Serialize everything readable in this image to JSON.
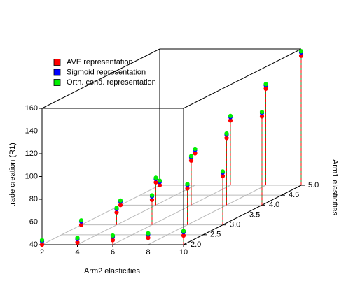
{
  "chart_data": {
    "type": "scatter3d",
    "xlabel": "Arm2 elasticities",
    "ylabel": "Arm1 elasticities",
    "zlabel": "trade creation (R1)",
    "x": [
      2,
      4,
      6,
      8,
      10,
      2,
      4,
      6,
      8,
      10,
      2,
      4,
      6,
      8,
      10,
      2,
      4,
      6,
      8,
      10
    ],
    "y": [
      2,
      2,
      2,
      2,
      2,
      3,
      3,
      3,
      3,
      3,
      4,
      4,
      4,
      4,
      4,
      5,
      5,
      5,
      5,
      5
    ],
    "series": [
      {
        "name": "AVE representation",
        "color": "#ff0000",
        "values": [
          40,
          42,
          44,
          46,
          48,
          40,
          51,
          62,
          72,
          83,
          40,
          60,
          79,
          99,
          118,
          40,
          68,
          97,
          125,
          154
        ]
      },
      {
        "name": "Sigmoid representation",
        "color": "#0000ff",
        "values": [
          43,
          45,
          47,
          49,
          51,
          43,
          54,
          65,
          75,
          86,
          43,
          63,
          82,
          102,
          121,
          43,
          71,
          100,
          128,
          157
        ]
      },
      {
        "name": "Orth. cond. representation",
        "color": "#00ee00",
        "values": [
          44,
          46,
          48,
          50,
          52,
          44,
          55,
          66,
          76,
          87,
          44,
          64,
          83,
          103,
          122,
          44,
          72,
          101,
          129,
          158
        ]
      }
    ],
    "xlim": [
      2,
      10
    ],
    "ylim": [
      2,
      5
    ],
    "zlim": [
      40,
      160
    ],
    "xticks": [
      2,
      4,
      6,
      8,
      10
    ],
    "yticks": [
      {
        "value": 2,
        "label": "2.0"
      },
      {
        "value": 2.5,
        "label": "2.5"
      },
      {
        "value": 3,
        "label": "3.0"
      },
      {
        "value": 3.5,
        "label": "3.5"
      },
      {
        "value": 4,
        "label": "4.0"
      },
      {
        "value": 4.5,
        "label": "4.5"
      },
      {
        "value": 5,
        "label": "5.0"
      }
    ],
    "zticks": [
      40,
      60,
      80,
      100,
      120,
      140,
      160
    ],
    "grid": true,
    "legend": "top-left"
  }
}
